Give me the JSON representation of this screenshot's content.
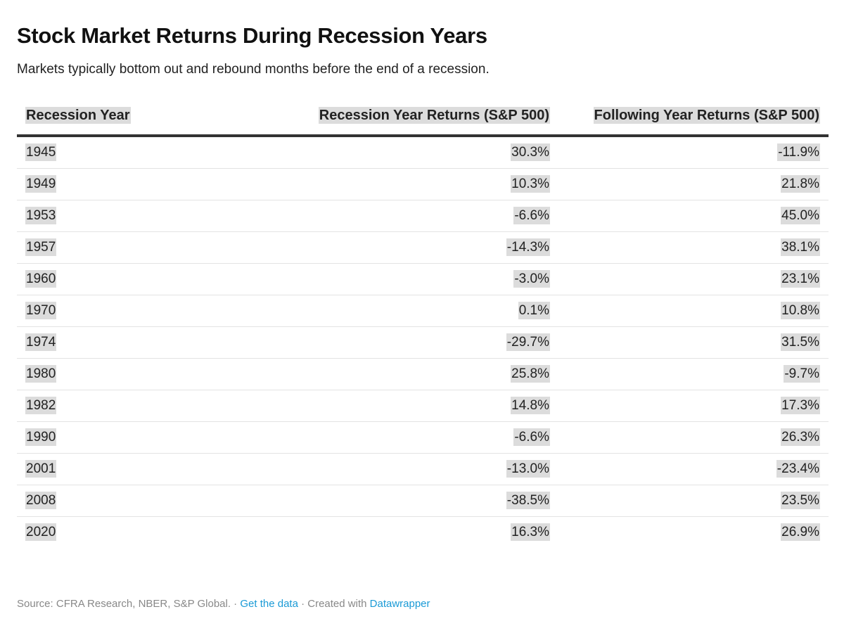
{
  "header": {
    "title": "Stock Market Returns During Recession Years",
    "subtitle": "Markets typically bottom out and rebound months before the end of a recession."
  },
  "chart_data": {
    "type": "table",
    "columns": [
      "Recession Year",
      "Recession Year Returns (S&P 500)",
      "Following Year Returns (S&P 500)"
    ],
    "rows": [
      [
        "1945",
        "30.3%",
        "-11.9%"
      ],
      [
        "1949",
        "10.3%",
        "21.8%"
      ],
      [
        "1953",
        "-6.6%",
        "45.0%"
      ],
      [
        "1957",
        "-14.3%",
        "38.1%"
      ],
      [
        "1960",
        "-3.0%",
        "23.1%"
      ],
      [
        "1970",
        "0.1%",
        "10.8%"
      ],
      [
        "1974",
        "-29.7%",
        "31.5%"
      ],
      [
        "1980",
        "25.8%",
        "-9.7%"
      ],
      [
        "1982",
        "14.8%",
        "17.3%"
      ],
      [
        "1990",
        "-6.6%",
        "26.3%"
      ],
      [
        "2001",
        "-13.0%",
        "-23.4%"
      ],
      [
        "2008",
        "-38.5%",
        "23.5%"
      ],
      [
        "2020",
        "16.3%",
        "26.9%"
      ]
    ]
  },
  "footer": {
    "source": "Source: CFRA Research, NBER, S&P Global.",
    "sep1": " · ",
    "get_data": "Get the data",
    "sep2": " · Created with ",
    "tool": "Datawrapper"
  },
  "colors": {
    "highlight": "#dcdcdc",
    "link": "#1a9ad6",
    "rule": "#333333"
  }
}
